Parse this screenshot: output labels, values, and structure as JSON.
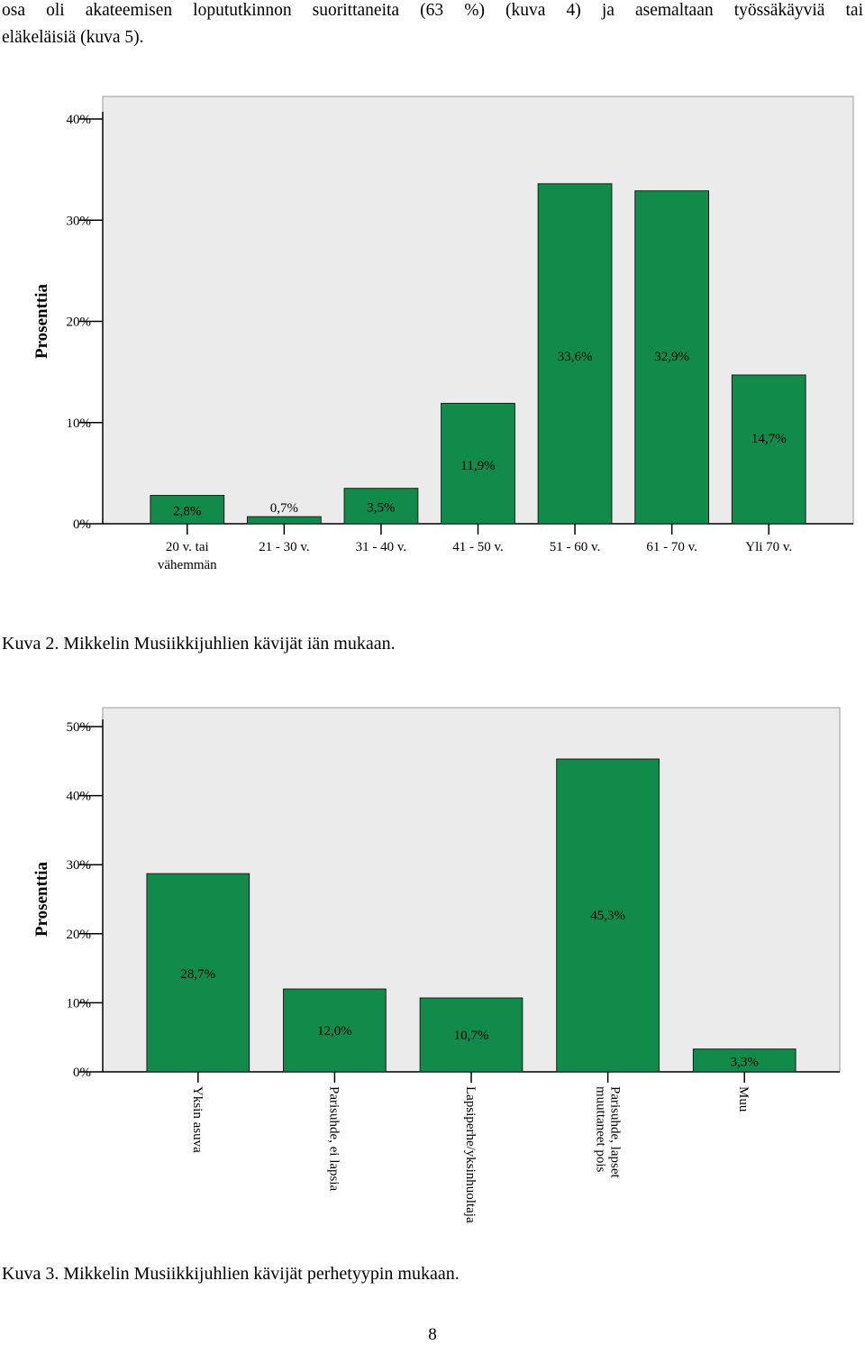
{
  "paragraph": {
    "line1": "osa oli akateemisen lopututkinnon suorittaneita (63 %) (kuva 4) ja asemaltaan työssäkäyviä tai",
    "line2": "eläkeläisiä (kuva 5)."
  },
  "chart_data": [
    {
      "type": "bar",
      "ylabel": "Prosenttia",
      "xlabel": "",
      "ylim": [
        0,
        40
      ],
      "yticks": [
        "0%",
        "10%",
        "20%",
        "30%",
        "40%"
      ],
      "categories": [
        "20 v. tai\nvähemmän",
        "21 - 30 v.",
        "31 - 40 v.",
        "41 - 50 v.",
        "51 - 60 v.",
        "61 - 70 v.",
        "Yli 70 v."
      ],
      "values": [
        2.8,
        0.7,
        3.5,
        11.9,
        33.6,
        32.9,
        14.7
      ],
      "data_labels": [
        "2,8%",
        "0,7%",
        "3,5%",
        "11,9%",
        "33,6%",
        "32,9%",
        "14,7%"
      ],
      "bar_color": "#128b4a",
      "plot_background": "#ebebeb",
      "grid": false
    },
    {
      "type": "bar",
      "ylabel": "Prosenttia",
      "xlabel": "",
      "ylim": [
        0,
        50
      ],
      "yticks": [
        "0%",
        "10%",
        "20%",
        "30%",
        "40%",
        "50%"
      ],
      "categories": [
        "Yksin asuva",
        "Parisuhde, ei lapsia",
        "Lapsiperhe/yksinhuoltaja",
        "Parisuhde, lapset\nmuuttaneet pois",
        "Muu"
      ],
      "values": [
        28.7,
        12.0,
        10.7,
        45.3,
        3.3
      ],
      "data_labels": [
        "28,7%",
        "12,0%",
        "10,7%",
        "45,3%",
        "3,3%"
      ],
      "bar_color": "#128b4a",
      "plot_background": "#ebebeb",
      "grid": false
    }
  ],
  "captions": {
    "kuva2": "Kuva 2. Mikkelin Musiikkijuhlien kävijät iän mukaan.",
    "kuva3": "Kuva 3. Mikkelin Musiikkijuhlien kävijät perhetyypin mukaan."
  },
  "page_number": "8"
}
